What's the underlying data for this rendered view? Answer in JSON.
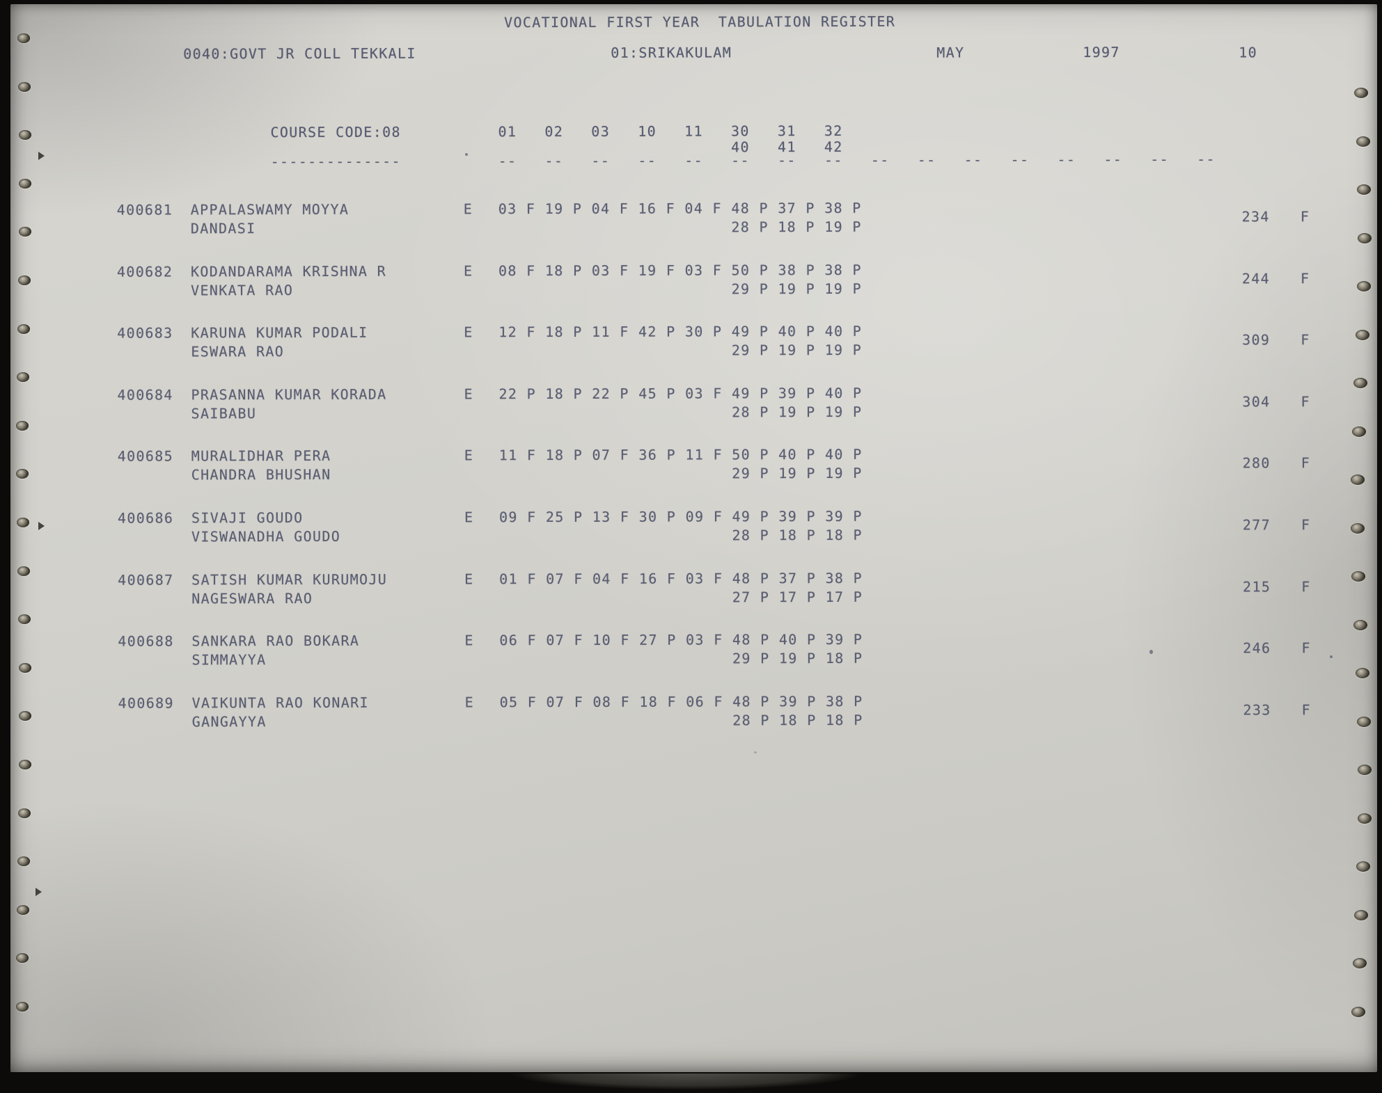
{
  "page": {
    "title": "VOCATIONAL FIRST YEAR  TABULATION REGISTER",
    "college": "0040:GOVT JR COLL TEKKALI",
    "district": "01:SRIKAKULAM",
    "month": "MAY",
    "year": "1997",
    "page_no": "10"
  },
  "table": {
    "course_code_label": "COURSE CODE:08",
    "course_underline_dashes": 14,
    "column_dash_groups": 16,
    "subject_codes_row1": [
      "01",
      "02",
      "03",
      "10",
      "11",
      "30",
      "31",
      "32"
    ],
    "subject_codes_row2": [
      "40",
      "41",
      "42"
    ],
    "subject_codes_row2_offset_cols": 5,
    "records": [
      {
        "roll": "400681",
        "name1": "APPALASWAMY MOYYA",
        "name2": "DANDASI",
        "medium": "E",
        "marks1": [
          "03 F",
          "19 P",
          "04 F",
          "16 F",
          "04 F",
          "48 P",
          "37 P",
          "38 P"
        ],
        "marks2": [
          "28 P",
          "18 P",
          "19 P"
        ],
        "total": "234",
        "result": "F"
      },
      {
        "roll": "400682",
        "name1": "KODANDARAMA KRISHNA R",
        "name2": "VENKATA RAO",
        "medium": "E",
        "marks1": [
          "08 F",
          "18 P",
          "03 F",
          "19 F",
          "03 F",
          "50 P",
          "38 P",
          "38 P"
        ],
        "marks2": [
          "29 P",
          "19 P",
          "19 P"
        ],
        "total": "244",
        "result": "F"
      },
      {
        "roll": "400683",
        "name1": "KARUNA KUMAR PODALI",
        "name2": "ESWARA RAO",
        "medium": "E",
        "marks1": [
          "12 F",
          "18 P",
          "11 F",
          "42 P",
          "30 P",
          "49 P",
          "40 P",
          "40 P"
        ],
        "marks2": [
          "29 P",
          "19 P",
          "19 P"
        ],
        "total": "309",
        "result": "F"
      },
      {
        "roll": "400684",
        "name1": "PRASANNA KUMAR KORADA",
        "name2": "SAIBABU",
        "medium": "E",
        "marks1": [
          "22 P",
          "18 P",
          "22 P",
          "45 P",
          "03 F",
          "49 P",
          "39 P",
          "40 P"
        ],
        "marks2": [
          "28 P",
          "19 P",
          "19 P"
        ],
        "total": "304",
        "result": "F"
      },
      {
        "roll": "400685",
        "name1": "MURALIDHAR PERA",
        "name2": "CHANDRA BHUSHAN",
        "medium": "E",
        "marks1": [
          "11 F",
          "18 P",
          "07 F",
          "36 P",
          "11 F",
          "50 P",
          "40 P",
          "40 P"
        ],
        "marks2": [
          "29 P",
          "19 P",
          "19 P"
        ],
        "total": "280",
        "result": "F"
      },
      {
        "roll": "400686",
        "name1": "SIVAJI GOUDO",
        "name2": "VISWANADHA GOUDO",
        "medium": "E",
        "marks1": [
          "09 F",
          "25 P",
          "13 F",
          "30 P",
          "09 F",
          "49 P",
          "39 P",
          "39 P"
        ],
        "marks2": [
          "28 P",
          "18 P",
          "18 P"
        ],
        "total": "277",
        "result": "F"
      },
      {
        "roll": "400687",
        "name1": "SATISH KUMAR KURUMOJU",
        "name2": "NAGESWARA RAO",
        "medium": "E",
        "marks1": [
          "01 F",
          "07 F",
          "04 F",
          "16 F",
          "03 F",
          "48 P",
          "37 P",
          "38 P"
        ],
        "marks2": [
          "27 P",
          "17 P",
          "17 P"
        ],
        "total": "215",
        "result": "F"
      },
      {
        "roll": "400688",
        "name1": "SANKARA RAO BOKARA",
        "name2": "SIMMAYYA",
        "medium": "E",
        "marks1": [
          "06 F",
          "07 F",
          "10 F",
          "27 P",
          "03 F",
          "48 P",
          "40 P",
          "39 P"
        ],
        "marks2": [
          "29 P",
          "19 P",
          "18 P"
        ],
        "total": "246",
        "result": "F"
      },
      {
        "roll": "400689",
        "name1": "VAIKUNTA RAO KONARI",
        "name2": "GANGAYYA",
        "medium": "E",
        "marks1": [
          "05 F",
          "07 F",
          "08 F",
          "18 F",
          "06 F",
          "48 P",
          "39 P",
          "38 P"
        ],
        "marks2": [
          "28 P",
          "18 P",
          "18 P"
        ],
        "total": "233",
        "result": "F"
      }
    ]
  }
}
